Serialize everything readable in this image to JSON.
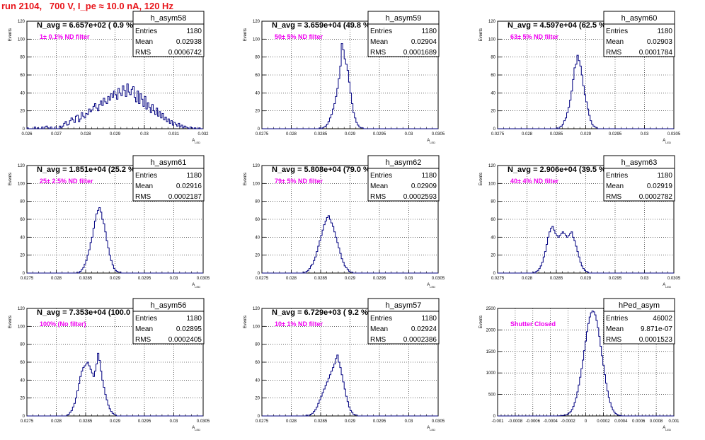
{
  "header": {
    "text": "run 2104,   700 V, I_pe ≈ 10.0 nA, 120 Hz"
  },
  "chart_data": [
    {
      "type": "bar",
      "hist_name": "h_asym58",
      "nav_text": "N_avg = 6.657e+02 ( 0.9 %)",
      "filter_text": "1± 0.1% ND filter",
      "stats": {
        "entries_label": "Entries",
        "entries": "1180",
        "mean_label": "Mean",
        "mean": "0.02938",
        "rms_label": "RMS",
        "rms": "0.0006742"
      },
      "xlabel": "A_LED",
      "ylabel": "Events",
      "xlim": [
        0.026,
        0.032
      ],
      "ylim": [
        0,
        120
      ],
      "xticks": [
        "0.026",
        "0.027",
        "0.028",
        "0.029",
        "0.03",
        "0.031",
        "0.032"
      ],
      "yticks": [
        "0",
        "20",
        "40",
        "60",
        "80",
        "100",
        "120"
      ],
      "values": [
        1,
        0,
        0,
        0,
        0,
        2,
        0,
        1,
        0,
        0,
        2,
        0,
        2,
        3,
        1,
        0,
        2,
        0,
        0,
        2,
        0,
        0,
        3,
        1,
        3,
        6,
        8,
        4,
        5,
        9,
        12,
        10,
        7,
        14,
        15,
        8,
        11,
        18,
        14,
        12,
        17,
        16,
        22,
        19,
        21,
        25,
        28,
        23,
        20,
        27,
        31,
        26,
        34,
        30,
        28,
        36,
        32,
        39,
        35,
        42,
        38,
        33,
        45,
        40,
        37,
        48,
        43,
        36,
        50,
        41,
        38,
        44,
        47,
        35,
        30,
        42,
        28,
        39,
        33,
        25,
        36,
        22,
        29,
        24,
        18,
        27,
        20,
        16,
        23,
        14,
        19,
        12,
        17,
        10,
        13,
        8,
        11,
        6,
        9,
        4,
        7,
        5,
        3,
        6,
        2,
        4,
        1,
        3,
        2,
        1,
        0,
        2,
        1,
        0,
        1,
        0,
        0,
        1,
        0,
        0
      ]
    },
    {
      "type": "bar",
      "hist_name": "h_asym59",
      "nav_text": "N_avg = 3.659e+04 (49.8 %)",
      "filter_text": "50± 5% ND filter",
      "stats": {
        "entries_label": "Entries",
        "entries": "1180",
        "mean_label": "Mean",
        "mean": "0.02904",
        "rms_label": "RMS",
        "rms": "0.0001689"
      },
      "xlabel": "A_LED",
      "ylabel": "Events",
      "xlim": [
        0.0275,
        0.0305
      ],
      "ylim": [
        0,
        120
      ],
      "xticks": [
        "0.0275",
        "0.028",
        "0.0285",
        "0.029",
        "0.0295",
        "0.03",
        "0.0305"
      ],
      "yticks": [
        "0",
        "20",
        "40",
        "60",
        "80",
        "100",
        "120"
      ],
      "values": [
        0,
        0,
        0,
        0,
        0,
        0,
        0,
        0,
        0,
        0,
        0,
        0,
        0,
        0,
        0,
        0,
        0,
        0,
        0,
        0,
        0,
        0,
        0,
        0,
        0,
        0,
        0,
        0,
        0,
        0,
        0,
        0,
        0,
        0,
        0,
        0,
        0,
        0,
        0,
        1,
        0,
        1,
        2,
        3,
        5,
        8,
        12,
        16,
        22,
        28,
        36,
        45,
        56,
        70,
        95,
        88,
        78,
        72,
        65,
        52,
        40,
        28,
        18,
        12,
        7,
        4,
        2,
        1,
        1,
        0,
        0,
        0,
        0,
        0,
        0,
        0,
        0,
        0,
        0,
        0,
        0,
        0,
        0,
        0,
        0,
        0,
        0,
        0,
        0,
        0,
        0,
        0,
        0,
        0,
        0,
        0,
        0,
        0,
        0,
        0,
        0,
        0,
        0,
        0,
        0,
        0,
        0,
        0,
        0,
        0,
        0,
        0,
        0,
        0,
        0,
        0,
        0,
        0,
        0,
        0
      ]
    },
    {
      "type": "bar",
      "hist_name": "h_asym60",
      "nav_text": "N_avg = 4.597e+04 (62.5 %)",
      "filter_text": "63± 5% ND filter",
      "stats": {
        "entries_label": "Entries",
        "entries": "1180",
        "mean_label": "Mean",
        "mean": "0.02903",
        "rms_label": "RMS",
        "rms": "0.0001784"
      },
      "xlabel": "A_LED",
      "ylabel": "Events",
      "xlim": [
        0.0275,
        0.0305
      ],
      "ylim": [
        0,
        120
      ],
      "xticks": [
        "0.0275",
        "0.028",
        "0.0285",
        "0.029",
        "0.0295",
        "0.03",
        "0.0305"
      ],
      "yticks": [
        "0",
        "20",
        "40",
        "60",
        "80",
        "100",
        "120"
      ],
      "values": [
        0,
        0,
        0,
        0,
        0,
        0,
        0,
        0,
        0,
        0,
        0,
        0,
        0,
        0,
        0,
        0,
        0,
        0,
        0,
        0,
        0,
        0,
        0,
        0,
        0,
        0,
        0,
        0,
        0,
        0,
        0,
        0,
        0,
        0,
        0,
        0,
        0,
        0,
        0,
        0,
        1,
        0,
        2,
        3,
        5,
        9,
        12,
        18,
        24,
        32,
        42,
        55,
        68,
        72,
        82,
        76,
        70,
        60,
        48,
        38,
        30,
        22,
        15,
        9,
        5,
        3,
        2,
        1,
        0,
        0,
        0,
        0,
        0,
        0,
        0,
        0,
        0,
        0,
        0,
        0,
        0,
        0,
        0,
        0,
        0,
        0,
        0,
        0,
        0,
        0,
        0,
        0,
        0,
        0,
        0,
        0,
        0,
        0,
        0,
        0,
        0,
        0,
        0,
        0,
        0,
        0,
        0,
        0,
        0,
        0,
        0,
        0,
        0,
        0,
        0,
        0,
        0,
        0,
        0,
        0
      ]
    },
    {
      "type": "bar",
      "hist_name": "h_asym61",
      "nav_text": "N_avg = 1.851e+04 (25.2 %)",
      "filter_text": "25± 2.5% ND filter",
      "stats": {
        "entries_label": "Entries",
        "entries": "1180",
        "mean_label": "Mean",
        "mean": "0.02916",
        "rms_label": "RMS",
        "rms": "0.0002187"
      },
      "xlabel": "A_LED",
      "ylabel": "Events",
      "xlim": [
        0.0275,
        0.0305
      ],
      "ylim": [
        0,
        120
      ],
      "xticks": [
        "0.0275",
        "0.028",
        "0.0285",
        "0.029",
        "0.0295",
        "0.03",
        "0.0305"
      ],
      "yticks": [
        "0",
        "20",
        "40",
        "60",
        "80",
        "100",
        "120"
      ],
      "values": [
        0,
        0,
        0,
        0,
        0,
        0,
        0,
        0,
        0,
        0,
        0,
        0,
        0,
        0,
        0,
        0,
        0,
        0,
        0,
        0,
        0,
        0,
        0,
        0,
        0,
        0,
        0,
        0,
        0,
        0,
        0,
        0,
        0,
        0,
        1,
        0,
        2,
        4,
        6,
        10,
        14,
        20,
        26,
        34,
        40,
        50,
        58,
        66,
        70,
        73,
        68,
        60,
        55,
        46,
        36,
        28,
        20,
        14,
        9,
        5,
        3,
        2,
        1,
        1,
        0,
        0,
        0,
        0,
        0,
        0,
        0,
        0,
        0,
        0,
        0,
        0,
        0,
        0,
        0,
        0,
        0,
        0,
        0,
        0,
        0,
        0,
        0,
        0,
        0,
        0,
        0,
        0,
        0,
        0,
        0,
        0,
        0,
        0,
        0,
        0,
        0,
        0,
        0,
        0,
        0,
        0,
        0,
        0,
        0,
        0,
        0,
        0,
        0,
        0,
        0,
        0,
        0,
        0,
        0,
        0
      ]
    },
    {
      "type": "bar",
      "hist_name": "h_asym62",
      "nav_text": "N_avg = 5.808e+04 (79.0 %)",
      "filter_text": "79± 5% ND filter",
      "stats": {
        "entries_label": "Entries",
        "entries": "1180",
        "mean_label": "Mean",
        "mean": "0.02909",
        "rms_label": "RMS",
        "rms": "0.0002593"
      },
      "xlabel": "A_LED",
      "ylabel": "Events",
      "xlim": [
        0.0275,
        0.0305
      ],
      "ylim": [
        0,
        120
      ],
      "xticks": [
        "0.0275",
        "0.028",
        "0.0285",
        "0.029",
        "0.0295",
        "0.03",
        "0.0305"
      ],
      "yticks": [
        "0",
        "20",
        "40",
        "60",
        "80",
        "100",
        "120"
      ],
      "values": [
        0,
        0,
        0,
        0,
        0,
        0,
        0,
        0,
        0,
        0,
        0,
        0,
        0,
        0,
        0,
        0,
        0,
        0,
        0,
        0,
        0,
        0,
        0,
        0,
        0,
        0,
        0,
        0,
        1,
        0,
        2,
        3,
        5,
        8,
        10,
        14,
        18,
        24,
        30,
        36,
        42,
        48,
        54,
        58,
        62,
        64,
        60,
        56,
        52,
        46,
        40,
        34,
        28,
        22,
        16,
        12,
        8,
        6,
        4,
        2,
        1,
        1,
        0,
        0,
        0,
        0,
        0,
        0,
        0,
        0,
        0,
        0,
        0,
        0,
        0,
        0,
        0,
        0,
        0,
        0,
        0,
        0,
        0,
        0,
        0,
        0,
        0,
        0,
        0,
        0,
        0,
        0,
        0,
        0,
        0,
        0,
        0,
        0,
        0,
        0,
        0,
        0,
        0,
        0,
        0,
        0,
        0,
        0,
        0,
        0,
        0,
        0,
        0,
        0,
        0,
        0,
        0,
        0,
        0,
        0
      ]
    },
    {
      "type": "bar",
      "hist_name": "h_asym63",
      "nav_text": "N_avg = 2.906e+04 (39.5 %)",
      "filter_text": "40± 4% ND filter",
      "stats": {
        "entries_label": "Entries",
        "entries": "1180",
        "mean_label": "Mean",
        "mean": "0.02919",
        "rms_label": "RMS",
        "rms": "0.0002782"
      },
      "xlabel": "A_LED",
      "ylabel": "Events",
      "xlim": [
        0.0275,
        0.0305
      ],
      "ylim": [
        0,
        120
      ],
      "xticks": [
        "0.0275",
        "0.028",
        "0.0285",
        "0.029",
        "0.0295",
        "0.03",
        "0.0305"
      ],
      "yticks": [
        "0",
        "20",
        "40",
        "60",
        "80",
        "100",
        "120"
      ],
      "values": [
        0,
        0,
        0,
        0,
        0,
        0,
        0,
        0,
        0,
        0,
        0,
        0,
        0,
        0,
        0,
        0,
        0,
        0,
        0,
        0,
        0,
        0,
        0,
        0,
        1,
        0,
        2,
        3,
        5,
        8,
        12,
        18,
        24,
        32,
        40,
        46,
        50,
        52,
        48,
        44,
        42,
        40,
        42,
        44,
        46,
        44,
        42,
        40,
        42,
        44,
        46,
        40,
        36,
        30,
        24,
        18,
        12,
        8,
        5,
        3,
        2,
        1,
        0,
        0,
        0,
        0,
        0,
        0,
        0,
        0,
        0,
        0,
        0,
        0,
        0,
        0,
        0,
        0,
        0,
        0,
        0,
        0,
        0,
        0,
        0,
        0,
        0,
        0,
        0,
        0,
        0,
        0,
        0,
        0,
        0,
        0,
        0,
        0,
        0,
        0,
        0,
        0,
        0,
        0,
        0,
        0,
        0,
        0,
        0,
        0,
        0,
        0,
        0,
        0,
        0,
        0,
        0,
        0,
        0,
        0
      ]
    },
    {
      "type": "bar",
      "hist_name": "h_asym56",
      "nav_text": "N_avg = 7.353e+04 (100.0 %)",
      "filter_text": "100% (No filter)",
      "stats": {
        "entries_label": "Entries",
        "entries": "1180",
        "mean_label": "Mean",
        "mean": "0.02895",
        "rms_label": "RMS",
        "rms": "0.0002405"
      },
      "xlabel": "A_LED",
      "ylabel": "Events",
      "xlim": [
        0.0275,
        0.0305
      ],
      "ylim": [
        0,
        120
      ],
      "xticks": [
        "0.0275",
        "0.028",
        "0.0285",
        "0.029",
        "0.0295",
        "0.03",
        "0.0305"
      ],
      "yticks": [
        "0",
        "20",
        "40",
        "60",
        "80",
        "100",
        "120"
      ],
      "values": [
        0,
        0,
        0,
        0,
        0,
        0,
        0,
        0,
        0,
        0,
        0,
        0,
        0,
        0,
        0,
        0,
        0,
        0,
        0,
        0,
        0,
        0,
        0,
        0,
        0,
        0,
        0,
        1,
        2,
        4,
        6,
        10,
        14,
        20,
        28,
        36,
        44,
        50,
        54,
        56,
        58,
        60,
        56,
        52,
        48,
        44,
        50,
        58,
        70,
        62,
        50,
        40,
        32,
        24,
        18,
        12,
        8,
        5,
        3,
        2,
        1,
        0,
        0,
        0,
        0,
        0,
        0,
        0,
        0,
        0,
        0,
        0,
        0,
        0,
        0,
        0,
        0,
        0,
        0,
        0,
        0,
        0,
        0,
        0,
        0,
        0,
        0,
        0,
        0,
        0,
        0,
        0,
        0,
        0,
        0,
        0,
        0,
        0,
        0,
        0,
        0,
        0,
        0,
        0,
        0,
        0,
        0,
        0,
        0,
        0,
        0,
        0,
        0,
        0,
        0,
        0,
        0,
        0,
        0,
        0
      ]
    },
    {
      "type": "bar",
      "hist_name": "h_asym57",
      "nav_text": "N_avg = 6.729e+03 ( 9.2 %)",
      "filter_text": "10± 1% ND filter",
      "stats": {
        "entries_label": "Entries",
        "entries": "1180",
        "mean_label": "Mean",
        "mean": "0.02924",
        "rms_label": "RMS",
        "rms": "0.0002386"
      },
      "xlabel": "A_LED",
      "ylabel": "Events",
      "xlim": [
        0.0275,
        0.0305
      ],
      "ylim": [
        0,
        120
      ],
      "xticks": [
        "0.0275",
        "0.028",
        "0.0285",
        "0.029",
        "0.0295",
        "0.03",
        "0.0305"
      ],
      "yticks": [
        "0",
        "20",
        "40",
        "60",
        "80",
        "100",
        "120"
      ],
      "values": [
        0,
        0,
        0,
        0,
        0,
        0,
        0,
        0,
        0,
        0,
        0,
        0,
        0,
        0,
        0,
        0,
        0,
        0,
        0,
        0,
        0,
        0,
        0,
        0,
        0,
        0,
        0,
        0,
        0,
        0,
        1,
        0,
        1,
        2,
        3,
        5,
        7,
        10,
        14,
        18,
        22,
        26,
        30,
        34,
        38,
        42,
        46,
        50,
        54,
        58,
        64,
        68,
        60,
        54,
        46,
        38,
        30,
        22,
        16,
        10,
        6,
        4,
        2,
        1,
        1,
        0,
        0,
        0,
        0,
        0,
        0,
        0,
        0,
        0,
        0,
        0,
        0,
        0,
        0,
        0,
        0,
        0,
        0,
        0,
        0,
        0,
        0,
        0,
        0,
        0,
        0,
        0,
        0,
        0,
        0,
        0,
        0,
        0,
        0,
        0,
        0,
        0,
        0,
        0,
        0,
        0,
        0,
        0,
        0,
        0,
        0,
        0,
        0,
        0,
        0,
        0,
        0,
        0,
        0,
        0
      ]
    },
    {
      "type": "bar",
      "hist_name": "hPed_asym",
      "nav_text": "",
      "filter_text": "Shutter Closed",
      "stats": {
        "entries_label": "Entries",
        "entries": "46002",
        "mean_label": "Mean",
        "mean": "9.871e-07",
        "rms_label": "RMS",
        "rms": "0.0001523"
      },
      "xlabel": "A_LED",
      "ylabel": "Events",
      "xlim": [
        -0.001,
        0.001
      ],
      "ylim": [
        0,
        2500
      ],
      "xticks": [
        "-0.001",
        "-0.0008",
        "-0.0006",
        "-0.0004",
        "-0.0002",
        "0",
        "0.0002",
        "0.0004",
        "0.0006",
        "0.0008",
        "0.001"
      ],
      "yticks": [
        "0",
        "500",
        "1000",
        "1500",
        "2000",
        "2500"
      ],
      "values": [
        0,
        0,
        0,
        0,
        0,
        0,
        0,
        0,
        0,
        0,
        0,
        0,
        0,
        0,
        0,
        0,
        0,
        0,
        0,
        0,
        0,
        0,
        0,
        0,
        0,
        0,
        0,
        0,
        0,
        0,
        0,
        0,
        0,
        0,
        0,
        0,
        0,
        0,
        0,
        0,
        0,
        0,
        0,
        1,
        2,
        4,
        6,
        10,
        14,
        20,
        30,
        45,
        70,
        100,
        150,
        220,
        310,
        420,
        560,
        720,
        900,
        1100,
        1300,
        1520,
        1740,
        1960,
        2150,
        2300,
        2400,
        2440,
        2420,
        2350,
        2220,
        2050,
        1850,
        1620,
        1400,
        1180,
        960,
        760,
        580,
        430,
        310,
        210,
        140,
        90,
        55,
        32,
        18,
        10,
        5,
        3,
        1,
        0,
        0,
        0,
        0,
        0,
        0,
        0,
        0,
        0,
        0,
        0,
        0,
        0,
        0,
        0,
        0,
        0,
        0,
        0,
        0,
        0,
        0,
        0,
        0,
        0,
        0,
        0,
        0,
        0,
        0,
        0,
        0,
        0,
        0,
        0,
        0
      ]
    }
  ]
}
